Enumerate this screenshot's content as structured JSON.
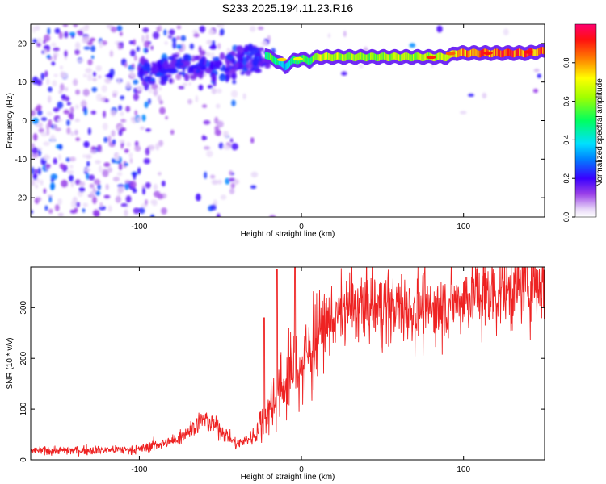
{
  "title": "S233.2025.194.11.23.R16",
  "chart_data": [
    {
      "type": "heatmap",
      "xlabel": "Height of straight line (km)",
      "ylabel": "Frequency (Hz)",
      "xlim": [
        -167,
        150
      ],
      "ylim": [
        -25,
        25
      ],
      "x_ticks": [
        -100,
        0,
        100
      ],
      "y_ticks": [
        -20,
        -10,
        0,
        10,
        20
      ],
      "colorbar": {
        "label": "Normalized spectral amplitude",
        "ticks": [
          "0.0",
          "0.2",
          "0.4",
          "0.6",
          "0.8"
        ],
        "range": [
          0,
          1
        ]
      },
      "ridge": {
        "description_free": true,
        "x": [
          -100,
          -80,
          -60,
          -45,
          -35,
          -30,
          -25,
          -20,
          -15,
          -10,
          -5,
          0,
          5,
          10,
          20,
          30,
          40,
          50,
          60,
          70,
          80,
          90,
          95,
          100,
          110,
          120,
          130,
          140,
          148
        ],
        "freq": [
          14,
          14,
          14,
          13,
          15,
          17,
          18,
          16.5,
          15.5,
          14,
          15.5,
          16,
          15.5,
          16.5,
          16.5,
          16.5,
          16.5,
          16.5,
          16.5,
          16.5,
          16.5,
          16.5,
          17.5,
          17.5,
          17.5,
          17.5,
          17.5,
          17.5,
          18
        ],
        "amplitude": [
          0.35,
          0.15,
          0.3,
          0.2,
          0.3,
          0.35,
          0.3,
          0.55,
          0.45,
          0.35,
          0.5,
          0.5,
          0.5,
          0.65,
          0.65,
          0.6,
          0.6,
          0.6,
          0.65,
          0.6,
          0.65,
          0.65,
          0.75,
          0.8,
          0.8,
          0.85,
          0.85,
          0.85,
          0.85
        ]
      }
    },
    {
      "type": "line",
      "xlabel": "Height of straight line (km)",
      "ylabel": "SNR (10 * v/v)",
      "xlim": [
        -167,
        150
      ],
      "ylim": [
        0,
        380
      ],
      "x_ticks": [
        -100,
        0,
        100
      ],
      "y_ticks": [
        0,
        100,
        200,
        300
      ],
      "color": "#ee2222",
      "trend": {
        "x": [
          -167,
          -100,
          -90,
          -80,
          -60,
          -50,
          -40,
          -30,
          -20,
          -10,
          -5,
          0,
          10,
          20,
          30,
          40,
          60,
          80,
          100,
          120,
          140,
          150
        ],
        "y": [
          18,
          20,
          30,
          35,
          80,
          60,
          30,
          45,
          100,
          150,
          180,
          180,
          250,
          280,
          300,
          300,
          300,
          295,
          320,
          330,
          345,
          350
        ]
      },
      "spikes": [
        {
          "x": -15,
          "y": 375
        },
        {
          "x": -4,
          "y": 380
        },
        {
          "x": -23,
          "y": 280
        },
        {
          "x": -8,
          "y": 260
        }
      ]
    }
  ]
}
